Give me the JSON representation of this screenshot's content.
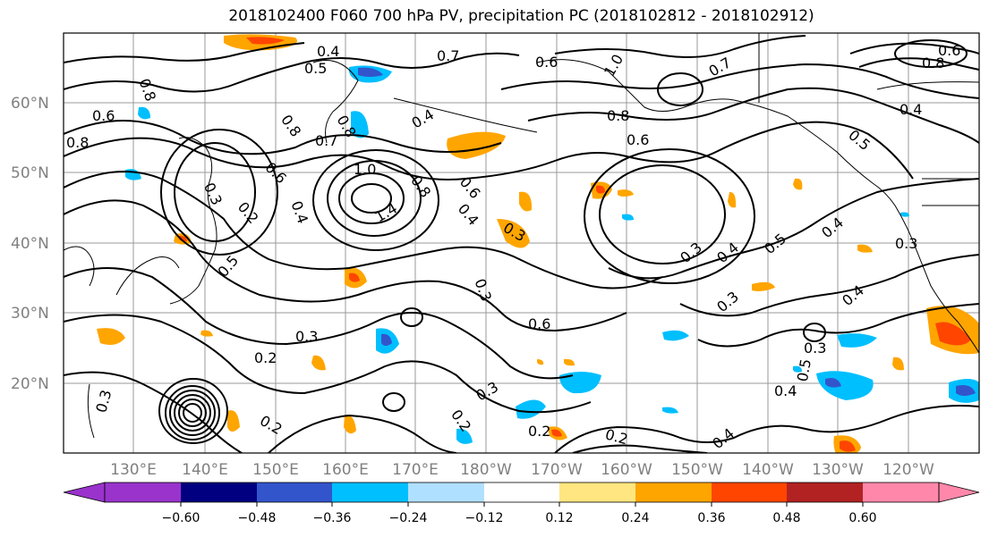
{
  "title": "2018102400 F060 700 hPa PV, precipitation PC (2018102812 - 2018102912)",
  "map": {
    "lat_labels": [
      "60°N",
      "50°N",
      "40°N",
      "30°N",
      "20°N"
    ],
    "lon_labels": [
      "130°E",
      "140°E",
      "150°E",
      "160°E",
      "170°E",
      "180°W",
      "170°W",
      "160°W",
      "150°W",
      "140°W",
      "130°W",
      "120°W"
    ],
    "contour_labels": [
      "0.4",
      "0.5",
      "0.7",
      "0.8",
      "0.6",
      "0.8",
      "0.6",
      "0.8",
      "0.7",
      "0.8",
      "0.6",
      "0.4",
      "0.8",
      "0.3",
      "0.2",
      "0.6",
      "0.4",
      "0.5",
      "1.0",
      "0.8",
      "1.4",
      "0.6",
      "0.4",
      "0.3",
      "0.3",
      "0.6",
      "0.3",
      "0.4",
      "0.5",
      "0.4",
      "0.3",
      "0.4",
      "0.3",
      "0.3",
      "0.2",
      "0.3",
      "0.2",
      "0.3",
      "0.2",
      "0.2",
      "0.3",
      "0.4",
      "0.5",
      "0.2",
      "0.4",
      "1.0",
      "0.7",
      "0.8",
      "0.4",
      "0.5",
      "0.6"
    ]
  },
  "colorbar": {
    "tick_labels": [
      "−0.60",
      "−0.48",
      "−0.36",
      "−0.24",
      "−0.12",
      "0.12",
      "0.24",
      "0.36",
      "0.48",
      "0.60"
    ],
    "colors": [
      "#9933cc",
      "#000080",
      "#3355cc",
      "#00bfff",
      "#b0e0ff",
      "#ffffff",
      "#ffe680",
      "#ffa500",
      "#ff4500",
      "#b22222",
      "#ff88aa"
    ]
  },
  "colors": {
    "negative_light": "#00bfff",
    "negative_mid": "#3355cc",
    "positive_light": "#ffa500",
    "positive_mid": "#ff4500",
    "grid": "#808080"
  }
}
